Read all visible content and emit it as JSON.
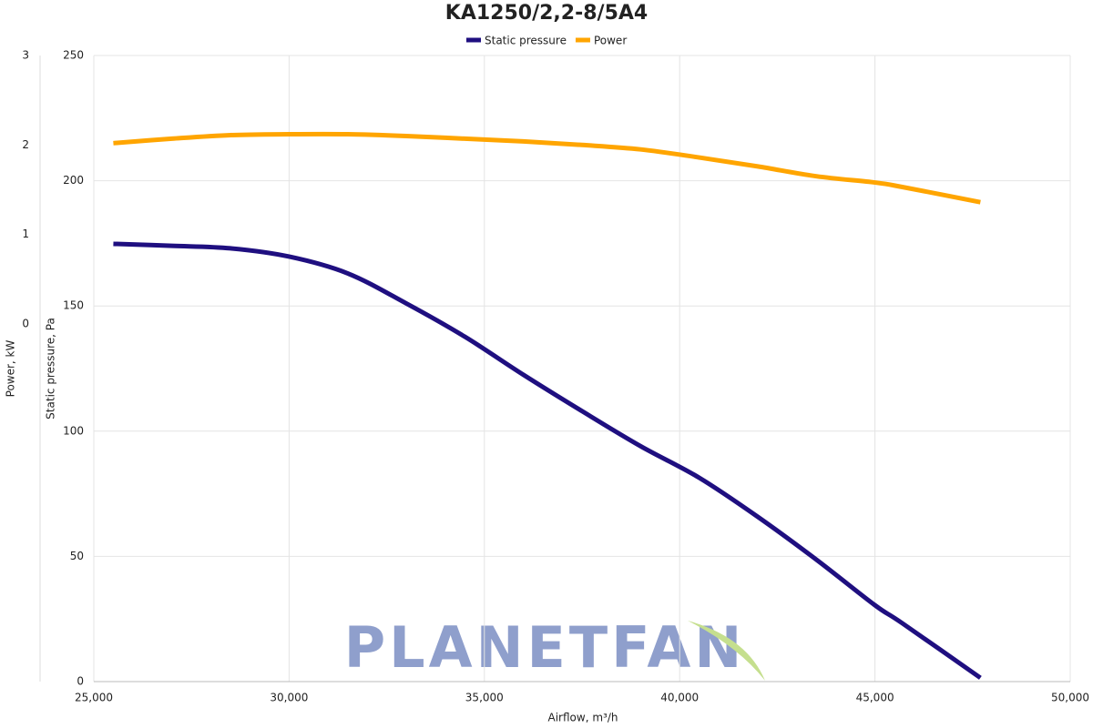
{
  "chart_data": {
    "type": "line",
    "title": "KA1250/2,2-8/5A4",
    "watermark": "PLANETFAN",
    "x_label": "Airflow, m³/h",
    "y_label": "Static pressure, Pa",
    "y2_label": "Power, kW",
    "x": [
      25500,
      27000,
      28500,
      30000,
      31500,
      33000,
      34500,
      36000,
      37500,
      39000,
      40500,
      42000,
      43500,
      45000,
      45700,
      47700
    ],
    "series": [
      {
        "name": "Static pressure",
        "color": "#1f0f80",
        "values": [
          174.8,
          174,
          173,
          169.7,
          163,
          151,
          137.7,
          122.5,
          108,
          94,
          81.4,
          65.8,
          48.7,
          30.5,
          23.3,
          1.5
        ]
      },
      {
        "name": "Power",
        "color": "#ffa500",
        "axis": "y2",
        "values": [
          2.02,
          2.07,
          2.11,
          2.12,
          2.12,
          2.1,
          2.07,
          2.04,
          2.0,
          1.95,
          1.86,
          1.76,
          1.65,
          1.58,
          1.53,
          1.36
        ]
      }
    ],
    "xlim": [
      25000,
      50000
    ],
    "xticks": [
      {
        "value": 25000,
        "label": "25,000"
      },
      {
        "value": 30000,
        "label": "30,000"
      },
      {
        "value": 35000,
        "label": "35,000"
      },
      {
        "value": 40000,
        "label": "40,000"
      },
      {
        "value": 45000,
        "label": "45,000"
      },
      {
        "value": 50000,
        "label": "50,000"
      }
    ],
    "ylim": [
      0,
      250
    ],
    "yticks": [
      0,
      50,
      100,
      150,
      200,
      250
    ],
    "y2lim": [
      -4,
      3
    ],
    "y2ticks": [
      0,
      1,
      2,
      3
    ],
    "grid": true
  }
}
